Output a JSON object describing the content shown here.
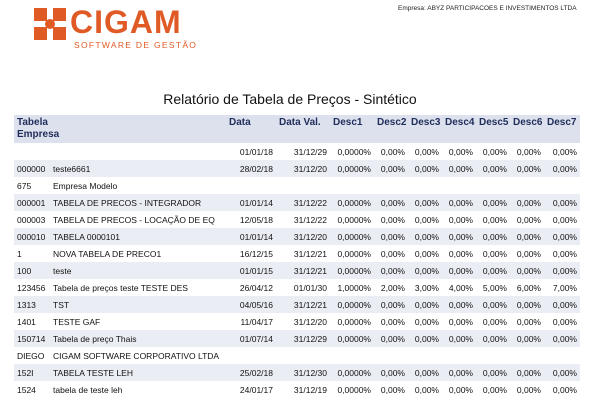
{
  "brand": {
    "name": "CIGAM",
    "tagline": "SOFTWARE DE GESTÃO",
    "color": "#e05a25"
  },
  "company_line": "Empresa: ABYZ PARTICIPACOES E INVESTIMENTOS LTDA",
  "report_title": "Relatório de Tabela de Preços - Sintético",
  "columns": {
    "tabela": "Tabela",
    "empresa": "Empresa",
    "data": "Data",
    "data_val": "Data Val.",
    "desc1": "Desc1",
    "desc2": "Desc2",
    "desc3": "Desc3",
    "desc4": "Desc4",
    "desc5": "Desc5",
    "desc6": "Desc6",
    "desc7": "Desc7"
  },
  "rows": [
    {
      "code": "",
      "name": "",
      "data": "01/01/18",
      "data_val": "31/12/29",
      "d1": "0,0000%",
      "d2": "0,00%",
      "d3": "0,00%",
      "d4": "0,00%",
      "d5": "0,00%",
      "d6": "0,00%",
      "d7": "0,00%"
    },
    {
      "code": "000000",
      "name": "teste6661",
      "data": "28/02/18",
      "data_val": "31/12/20",
      "d1": "0,0000%",
      "d2": "0,00%",
      "d3": "0,00%",
      "d4": "0,00%",
      "d5": "0,00%",
      "d6": "0,00%",
      "d7": "0,00%"
    },
    {
      "code": "675",
      "name": "Empresa Modelo",
      "data": "",
      "data_val": "",
      "d1": "",
      "d2": "",
      "d3": "",
      "d4": "",
      "d5": "",
      "d6": "",
      "d7": ""
    },
    {
      "code": "000001",
      "name": "TABELA DE PRECOS - INTEGRADOR",
      "data": "01/01/14",
      "data_val": "31/12/22",
      "d1": "0,0000%",
      "d2": "0,00%",
      "d3": "0,00%",
      "d4": "0,00%",
      "d5": "0,00%",
      "d6": "0,00%",
      "d7": "0,00%"
    },
    {
      "code": "000003",
      "name": "TABELA DE PRECOS - LOCAÇÃO DE EQ",
      "data": "12/05/18",
      "data_val": "31/12/22",
      "d1": "0,0000%",
      "d2": "0,00%",
      "d3": "0,00%",
      "d4": "0,00%",
      "d5": "0,00%",
      "d6": "0,00%",
      "d7": "0,00%"
    },
    {
      "code": "000010",
      "name": "TABELA 0000101",
      "data": "01/01/14",
      "data_val": "31/12/20",
      "d1": "0,0000%",
      "d2": "0,00%",
      "d3": "0,00%",
      "d4": "0,00%",
      "d5": "0,00%",
      "d6": "0,00%",
      "d7": "0,00%"
    },
    {
      "code": "1",
      "name": "NOVA TABELA DE PRECO1",
      "data": "16/12/15",
      "data_val": "31/12/21",
      "d1": "0,0000%",
      "d2": "0,00%",
      "d3": "0,00%",
      "d4": "0,00%",
      "d5": "0,00%",
      "d6": "0,00%",
      "d7": "0,00%"
    },
    {
      "code": "100",
      "name": "teste",
      "data": "01/01/15",
      "data_val": "31/12/21",
      "d1": "0,0000%",
      "d2": "0,00%",
      "d3": "0,00%",
      "d4": "0,00%",
      "d5": "0,00%",
      "d6": "0,00%",
      "d7": "0,00%"
    },
    {
      "code": "123456",
      "name": "Tabela de preços teste TESTE DES",
      "data": "26/04/12",
      "data_val": "01/01/30",
      "d1": "1,0000%",
      "d2": "2,00%",
      "d3": "3,00%",
      "d4": "4,00%",
      "d5": "5,00%",
      "d6": "6,00%",
      "d7": "7,00%"
    },
    {
      "code": "1313",
      "name": "TST",
      "data": "04/05/16",
      "data_val": "31/12/21",
      "d1": "0,0000%",
      "d2": "0,00%",
      "d3": "0,00%",
      "d4": "0,00%",
      "d5": "0,00%",
      "d6": "0,00%",
      "d7": "0,00%"
    },
    {
      "code": "1401",
      "name": "TESTE GAF",
      "data": "11/04/17",
      "data_val": "31/12/20",
      "d1": "0,0000%",
      "d2": "0,00%",
      "d3": "0,00%",
      "d4": "0,00%",
      "d5": "0,00%",
      "d6": "0,00%",
      "d7": "0,00%"
    },
    {
      "code": "150714",
      "name": "Tabela de preço Thais",
      "data": "01/07/14",
      "data_val": "31/12/29",
      "d1": "0,0000%",
      "d2": "0,00%",
      "d3": "0,00%",
      "d4": "0,00%",
      "d5": "0,00%",
      "d6": "0,00%",
      "d7": "0,00%"
    },
    {
      "code": "DIEGO",
      "name": "CIGAM SOFTWARE CORPORATIVO LTDA",
      "data": "",
      "data_val": "",
      "d1": "",
      "d2": "",
      "d3": "",
      "d4": "",
      "d5": "",
      "d6": "",
      "d7": ""
    },
    {
      "code": "152I",
      "name": "TABELA TESTE LEH",
      "data": "25/02/18",
      "data_val": "31/12/30",
      "d1": "0,0000%",
      "d2": "0,00%",
      "d3": "0,00%",
      "d4": "0,00%",
      "d5": "0,00%",
      "d6": "0,00%",
      "d7": "0,00%"
    },
    {
      "code": "1524",
      "name": "tabela de teste leh",
      "data": "24/01/17",
      "data_val": "31/12/19",
      "d1": "0,0000%",
      "d2": "0,00%",
      "d3": "0,00%",
      "d4": "0,00%",
      "d5": "0,00%",
      "d6": "0,00%",
      "d7": "0,00%"
    }
  ]
}
